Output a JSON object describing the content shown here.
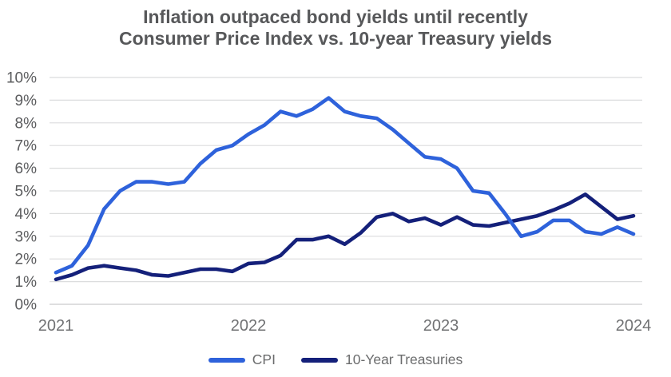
{
  "title": {
    "line1": "Inflation outpaced bond yields until recently",
    "line2": "Consumer Price Index vs. 10-year Treasury yields"
  },
  "colors": {
    "background": "#FFFFFF",
    "cpi_line": "#2E62DB",
    "treasury_line": "#14207A",
    "gridline": "#DBDCDD",
    "baseline": "#C9CBCC",
    "title_text": "#57585A",
    "y_tick_text": "#5B5C5E",
    "x_tick_text": "#707173",
    "legend_text": "#6B6C6D"
  },
  "chart_data": {
    "type": "line",
    "title": "Inflation outpaced bond yields until recently",
    "subtitle": "Consumer Price Index vs. 10-year Treasury yields",
    "x_unit": "monthly, Jan 2021 through Jan 2024",
    "x_tick_labels": [
      "2021",
      "2022",
      "2023",
      "2024"
    ],
    "x_tick_month_indices": [
      0,
      12,
      24,
      36
    ],
    "y_tick_labels": [
      "0%",
      "1%",
      "2%",
      "3%",
      "4%",
      "5%",
      "6%",
      "7%",
      "8%",
      "9%",
      "10%"
    ],
    "ylim": [
      0,
      10
    ],
    "grid": "horizontal",
    "legend_position": "bottom",
    "series": [
      {
        "name": "CPI",
        "color": "#2E62DB",
        "values": [
          1.4,
          1.7,
          2.6,
          4.2,
          5.0,
          5.4,
          5.4,
          5.3,
          5.4,
          6.2,
          6.8,
          7.0,
          7.5,
          7.9,
          8.5,
          8.3,
          8.6,
          9.1,
          8.5,
          8.3,
          8.2,
          7.7,
          7.1,
          6.5,
          6.4,
          6.0,
          5.0,
          4.9,
          4.0,
          3.0,
          3.2,
          3.7,
          3.7,
          3.2,
          3.1,
          3.4,
          3.1
        ]
      },
      {
        "name": "10-Year Treasuries",
        "color": "#14207A",
        "values": [
          1.1,
          1.3,
          1.6,
          1.7,
          1.6,
          1.5,
          1.3,
          1.25,
          1.4,
          1.55,
          1.55,
          1.45,
          1.8,
          1.85,
          2.15,
          2.85,
          2.85,
          3.0,
          2.65,
          3.15,
          3.85,
          4.0,
          3.65,
          3.8,
          3.5,
          3.85,
          3.5,
          3.45,
          3.6,
          3.75,
          3.9,
          4.15,
          4.45,
          4.85,
          4.3,
          3.75,
          3.9
        ]
      }
    ]
  }
}
